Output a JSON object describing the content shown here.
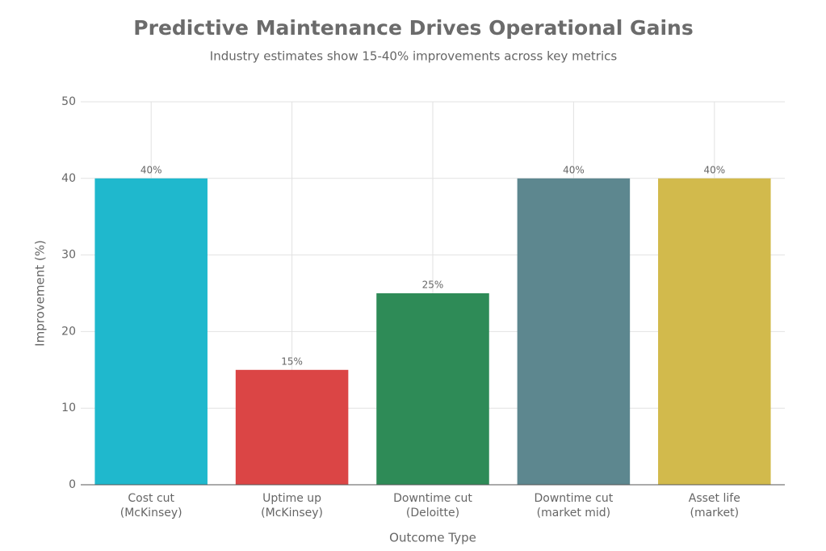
{
  "chart_data": {
    "type": "bar",
    "title": "Predictive Maintenance Drives Operational Gains",
    "subtitle": "Industry estimates show 15-40% improvements across key metrics",
    "x_label": "Outcome Type",
    "y_label": "Improvement (%)",
    "categories": [
      [
        "Cost cut",
        "(McKinsey)"
      ],
      [
        "Uptime up",
        "(McKinsey)"
      ],
      [
        "Downtime cut",
        "(Deloitte)"
      ],
      [
        "Downtime cut",
        "(market mid)"
      ],
      [
        "Asset life",
        "(market)"
      ]
    ],
    "values": [
      40,
      15,
      25,
      40,
      40
    ],
    "value_labels": [
      "40%",
      "15%",
      "25%",
      "40%",
      "40%"
    ],
    "colors": [
      "#1fb8cd",
      "#db4545",
      "#2e8b57",
      "#5d878f",
      "#d2ba4c"
    ],
    "ylim": [
      0,
      50
    ],
    "yticks": [
      0,
      10,
      20,
      30,
      40,
      50
    ],
    "grid": true
  }
}
